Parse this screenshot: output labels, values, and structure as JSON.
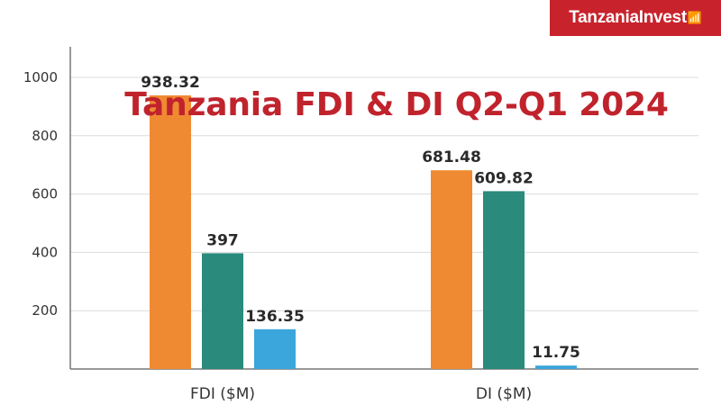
{
  "brand": {
    "name": "TanzaniaInvest",
    "icon": "wifi-wave-icon",
    "color": "#c8232c"
  },
  "colors": {
    "series": [
      "#ef8a32",
      "#2a8a7c",
      "#3aa6dc"
    ],
    "axis": "#777777",
    "grid": "#dcdcdc",
    "title": "#c0232c"
  },
  "chart_data": {
    "type": "bar",
    "title": "Tanzania FDI & DI Q2-Q1 2024",
    "xlabel": "",
    "ylabel": "",
    "categories": [
      "FDI ($M)",
      "DI ($M)"
    ],
    "series": [
      {
        "values": [
          938.32,
          681.48
        ]
      },
      {
        "values": [
          397,
          609.82
        ]
      },
      {
        "values": [
          136.35,
          11.75
        ]
      }
    ],
    "data_labels": [
      [
        "938.32",
        "681.48"
      ],
      [
        "397",
        "609.82"
      ],
      [
        "136.35",
        "11.75"
      ]
    ],
    "y_ticks": [
      200,
      400,
      600,
      800,
      1000
    ],
    "y_tick_labels": [
      "200",
      "400",
      "600",
      "800",
      "1000"
    ],
    "ylim": [
      0,
      1000
    ],
    "grid": true,
    "legend": "none"
  }
}
